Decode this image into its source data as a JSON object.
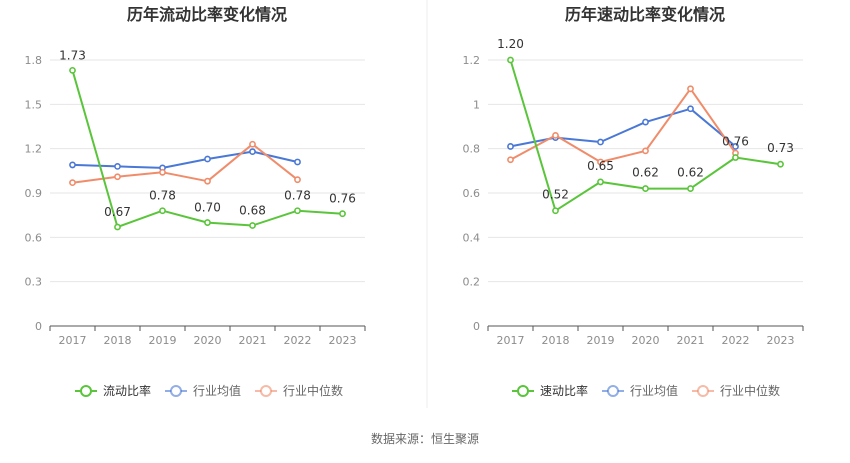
{
  "colors": {
    "current": "#5ac53b",
    "avg": "#4a78d6",
    "median": "#f08c6a",
    "grid": "#e6e6e6",
    "axis": "#555555",
    "tick": "#8c8c8c"
  },
  "source_text": "数据来源：恒生聚源",
  "chart_data": [
    {
      "type": "line",
      "title": "历年流动比率变化情况",
      "categories": [
        "2017",
        "2018",
        "2019",
        "2020",
        "2021",
        "2022",
        "2023"
      ],
      "ylim": [
        0,
        1.8
      ],
      "yticks": [
        0,
        0.3,
        0.6,
        0.9,
        1.2,
        1.5,
        1.8
      ],
      "ytick_labels": [
        "0",
        "0.3",
        "0.6",
        "0.9",
        "1.2",
        "1.5",
        "1.8"
      ],
      "grid": true,
      "legend_position": "bottom",
      "series": [
        {
          "name": "流动比率",
          "key": "current",
          "values": [
            1.73,
            0.67,
            0.78,
            0.7,
            0.68,
            0.78,
            0.76
          ],
          "labels": [
            "1.73",
            "0.67",
            "0.78",
            "0.70",
            "0.68",
            "0.78",
            "0.76"
          ]
        },
        {
          "name": "行业均值",
          "key": "avg",
          "values": [
            1.09,
            1.08,
            1.07,
            1.13,
            1.18,
            1.11,
            null
          ]
        },
        {
          "name": "行业中位数",
          "key": "median",
          "values": [
            0.97,
            1.01,
            1.04,
            0.98,
            1.23,
            0.99,
            null
          ]
        }
      ]
    },
    {
      "type": "line",
      "title": "历年速动比率变化情况",
      "categories": [
        "2017",
        "2018",
        "2019",
        "2020",
        "2021",
        "2022",
        "2023"
      ],
      "ylim": [
        0,
        1.2
      ],
      "yticks": [
        0,
        0.2,
        0.4,
        0.6,
        0.8,
        1.0,
        1.2
      ],
      "ytick_labels": [
        "0",
        "0.2",
        "0.4",
        "0.6",
        "0.8",
        "1",
        "1.2"
      ],
      "grid": true,
      "legend_position": "bottom",
      "series": [
        {
          "name": "速动比率",
          "key": "current",
          "values": [
            1.2,
            0.52,
            0.65,
            0.62,
            0.62,
            0.76,
            0.73
          ],
          "labels": [
            "1.20",
            "0.52",
            "0.65",
            "0.62",
            "0.62",
            "0.76",
            "0.73"
          ]
        },
        {
          "name": "行业均值",
          "key": "avg",
          "values": [
            0.81,
            0.85,
            0.83,
            0.92,
            0.98,
            0.81,
            null
          ]
        },
        {
          "name": "行业中位数",
          "key": "median",
          "values": [
            0.75,
            0.86,
            0.74,
            0.79,
            1.07,
            0.78,
            null
          ]
        }
      ]
    }
  ]
}
